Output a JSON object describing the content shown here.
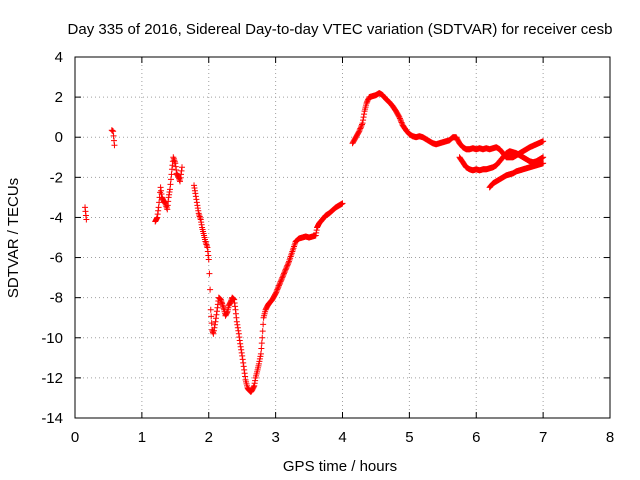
{
  "chart_data": {
    "type": "scatter",
    "title": "Day 335 of 2016, Sidereal Day-to-day VTEC variation (SDTVAR) for receiver cesb",
    "xlabel": "GPS time / hours",
    "ylabel": "SDTVAR / TECUs",
    "xlim": [
      0,
      8
    ],
    "ylim": [
      -14,
      4
    ],
    "xticks": [
      "0",
      "1",
      "2",
      "3",
      "4",
      "5",
      "6",
      "7",
      "8"
    ],
    "yticks": [
      "-14",
      "-12",
      "-10",
      "-8",
      "-6",
      "-4",
      "-2",
      "0",
      "2",
      "4"
    ],
    "grid": true,
    "marker": "+",
    "color": "#ff0000",
    "segments": [
      [
        [
          0.15,
          -3.5
        ],
        [
          0.17,
          -4.1
        ]
      ],
      [
        [
          0.55,
          0.35
        ],
        [
          0.57,
          0.3
        ],
        [
          0.59,
          -0.4
        ]
      ],
      [
        [
          1.2,
          -4.2
        ],
        [
          1.23,
          -4.0
        ],
        [
          1.25,
          -3.5
        ],
        [
          1.28,
          -2.5
        ],
        [
          1.3,
          -3.0
        ],
        [
          1.33,
          -3.2
        ],
        [
          1.35,
          -3.3
        ],
        [
          1.38,
          -3.6
        ],
        [
          1.4,
          -3.0
        ],
        [
          1.42,
          -2.6
        ],
        [
          1.45,
          -1.6
        ],
        [
          1.47,
          -1.0
        ],
        [
          1.5,
          -1.3
        ],
        [
          1.52,
          -1.8
        ],
        [
          1.55,
          -2.0
        ],
        [
          1.57,
          -2.2
        ],
        [
          1.6,
          -1.5
        ]
      ],
      [
        [
          1.78,
          -2.4
        ],
        [
          1.8,
          -2.8
        ],
        [
          1.83,
          -3.4
        ],
        [
          1.85,
          -3.8
        ],
        [
          1.88,
          -4.1
        ],
        [
          1.9,
          -4.5
        ],
        [
          1.93,
          -4.9
        ],
        [
          1.95,
          -5.2
        ],
        [
          1.98,
          -5.5
        ],
        [
          2.0,
          -6.1
        ],
        [
          2.01,
          -6.8
        ],
        [
          2.02,
          -7.6
        ],
        [
          2.03,
          -8.6
        ],
        [
          2.05,
          -9.6
        ],
        [
          2.07,
          -9.8
        ],
        [
          2.1,
          -9.2
        ],
        [
          2.13,
          -8.5
        ],
        [
          2.15,
          -8.0
        ],
        [
          2.18,
          -8.1
        ],
        [
          2.2,
          -8.3
        ],
        [
          2.23,
          -8.6
        ],
        [
          2.25,
          -8.9
        ],
        [
          2.28,
          -8.7
        ],
        [
          2.3,
          -8.4
        ],
        [
          2.33,
          -8.2
        ],
        [
          2.35,
          -8.0
        ],
        [
          2.38,
          -8.1
        ],
        [
          2.4,
          -8.6
        ],
        [
          2.42,
          -9.2
        ],
        [
          2.45,
          -9.8
        ],
        [
          2.47,
          -10.3
        ],
        [
          2.5,
          -10.9
        ],
        [
          2.53,
          -11.6
        ],
        [
          2.55,
          -12.1
        ],
        [
          2.58,
          -12.5
        ],
        [
          2.6,
          -12.6
        ],
        [
          2.63,
          -12.7
        ],
        [
          2.65,
          -12.6
        ],
        [
          2.68,
          -12.4
        ],
        [
          2.7,
          -12.0
        ],
        [
          2.73,
          -11.6
        ],
        [
          2.75,
          -11.3
        ],
        [
          2.78,
          -10.8
        ],
        [
          2.8,
          -10.0
        ],
        [
          2.82,
          -9.0
        ],
        [
          2.85,
          -8.6
        ],
        [
          2.88,
          -8.4
        ],
        [
          2.9,
          -8.3
        ]
      ],
      [
        [
          2.9,
          -8.3
        ],
        [
          2.95,
          -8.1
        ],
        [
          3.0,
          -7.8
        ],
        [
          3.05,
          -7.4
        ],
        [
          3.1,
          -7.0
        ],
        [
          3.15,
          -6.6
        ],
        [
          3.2,
          -6.2
        ],
        [
          3.25,
          -5.7
        ],
        [
          3.3,
          -5.2
        ],
        [
          3.35,
          -5.05
        ],
        [
          3.4,
          -5.0
        ],
        [
          3.45,
          -4.95
        ],
        [
          3.5,
          -5.0
        ],
        [
          3.55,
          -4.95
        ],
        [
          3.6,
          -4.9
        ],
        [
          3.62,
          -4.5
        ],
        [
          3.65,
          -4.3
        ],
        [
          3.7,
          -4.1
        ],
        [
          3.75,
          -3.9
        ],
        [
          3.8,
          -3.8
        ],
        [
          3.85,
          -3.65
        ],
        [
          3.9,
          -3.5
        ],
        [
          3.95,
          -3.4
        ],
        [
          4.0,
          -3.3
        ]
      ],
      [
        [
          4.15,
          -0.3
        ],
        [
          4.2,
          0.0
        ],
        [
          4.25,
          0.3
        ],
        [
          4.3,
          0.7
        ],
        [
          4.33,
          1.3
        ],
        [
          4.36,
          1.7
        ],
        [
          4.4,
          2.0
        ],
        [
          4.45,
          2.05
        ],
        [
          4.5,
          2.1
        ],
        [
          4.55,
          2.2
        ],
        [
          4.6,
          2.1
        ],
        [
          4.65,
          1.9
        ],
        [
          4.7,
          1.75
        ],
        [
          4.75,
          1.55
        ],
        [
          4.8,
          1.3
        ],
        [
          4.85,
          1.0
        ],
        [
          4.9,
          0.6
        ],
        [
          4.95,
          0.35
        ],
        [
          5.0,
          0.15
        ],
        [
          5.05,
          0.05
        ],
        [
          5.1,
          0.0
        ],
        [
          5.15,
          0.05
        ],
        [
          5.2,
          0.0
        ],
        [
          5.25,
          -0.1
        ],
        [
          5.3,
          -0.2
        ],
        [
          5.35,
          -0.3
        ],
        [
          5.4,
          -0.35
        ],
        [
          5.45,
          -0.3
        ],
        [
          5.5,
          -0.25
        ],
        [
          5.55,
          -0.2
        ],
        [
          5.6,
          -0.15
        ],
        [
          5.65,
          0.0
        ],
        [
          5.7,
          0.0
        ],
        [
          5.75,
          -0.3
        ],
        [
          5.8,
          -0.5
        ],
        [
          5.85,
          -0.6
        ],
        [
          5.9,
          -0.6
        ],
        [
          5.95,
          -0.55
        ],
        [
          6.0,
          -0.6
        ],
        [
          6.05,
          -0.55
        ],
        [
          6.1,
          -0.6
        ],
        [
          6.15,
          -0.55
        ],
        [
          6.2,
          -0.6
        ],
        [
          6.25,
          -0.55
        ],
        [
          6.3,
          -0.5
        ],
        [
          6.35,
          -0.6
        ],
        [
          6.4,
          -0.8
        ],
        [
          6.45,
          -1.0
        ],
        [
          6.5,
          -1.0
        ],
        [
          6.55,
          -1.0
        ],
        [
          6.6,
          -0.9
        ],
        [
          6.7,
          -0.7
        ],
        [
          6.8,
          -0.5
        ],
        [
          6.9,
          -0.35
        ],
        [
          7.0,
          -0.2
        ]
      ],
      [
        [
          5.75,
          -1.0
        ],
        [
          5.8,
          -1.25
        ],
        [
          5.85,
          -1.5
        ],
        [
          5.9,
          -1.6
        ],
        [
          5.95,
          -1.65
        ],
        [
          6.0,
          -1.6
        ],
        [
          6.05,
          -1.65
        ],
        [
          6.1,
          -1.6
        ],
        [
          6.15,
          -1.6
        ],
        [
          6.2,
          -1.55
        ],
        [
          6.25,
          -1.5
        ],
        [
          6.3,
          -1.4
        ],
        [
          6.35,
          -1.2
        ],
        [
          6.4,
          -1.0
        ],
        [
          6.45,
          -0.8
        ],
        [
          6.5,
          -0.7
        ],
        [
          6.55,
          -0.75
        ],
        [
          6.6,
          -0.8
        ],
        [
          6.65,
          -0.9
        ],
        [
          6.7,
          -1.0
        ],
        [
          6.75,
          -1.1
        ],
        [
          6.8,
          -1.2
        ],
        [
          6.85,
          -1.25
        ],
        [
          6.9,
          -1.2
        ],
        [
          6.95,
          -1.1
        ],
        [
          7.0,
          -1.0
        ]
      ],
      [
        [
          6.2,
          -2.5
        ],
        [
          6.25,
          -2.3
        ],
        [
          6.3,
          -2.2
        ],
        [
          6.35,
          -2.1
        ],
        [
          6.4,
          -2.0
        ],
        [
          6.45,
          -1.9
        ],
        [
          6.5,
          -1.85
        ],
        [
          6.55,
          -1.8
        ],
        [
          6.6,
          -1.7
        ],
        [
          6.65,
          -1.65
        ],
        [
          6.7,
          -1.6
        ],
        [
          6.75,
          -1.55
        ],
        [
          6.8,
          -1.5
        ],
        [
          6.85,
          -1.45
        ],
        [
          6.9,
          -1.4
        ],
        [
          6.95,
          -1.35
        ],
        [
          7.0,
          -1.3
        ]
      ]
    ]
  }
}
